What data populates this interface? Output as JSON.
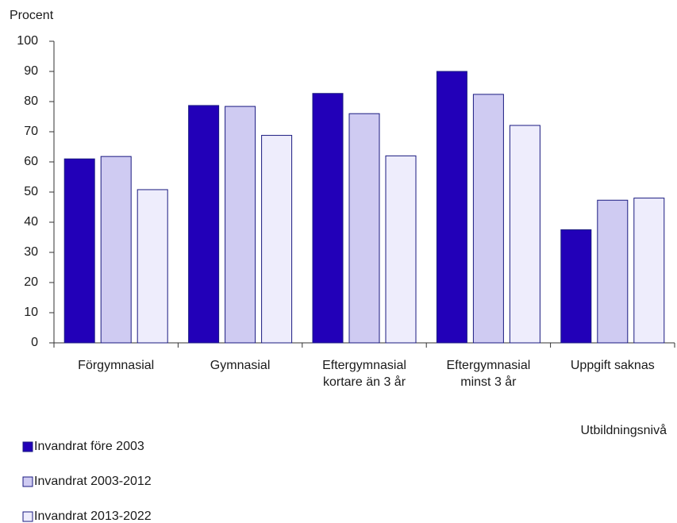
{
  "chart_data": {
    "type": "bar",
    "y_label": "Procent",
    "x_label": "Utbildningsnivå",
    "categories": [
      "Förgymnasial",
      "Gymnasial",
      "Eftergymnasial\nkortare än 3 år",
      "Eftergymnasial\nminst 3 år",
      "Uppgift saknas"
    ],
    "series": [
      {
        "name": "Invandrat före 2003",
        "color": "#2200b8",
        "values": [
          61,
          78.7,
          82.7,
          90,
          37.5
        ]
      },
      {
        "name": "Invandrat 2003-2012",
        "color": "#cfcbf2",
        "values": [
          61.8,
          78.4,
          76,
          82.4,
          47.3
        ]
      },
      {
        "name": "Invandrat 2013-2022",
        "color": "#eeedfc",
        "values": [
          50.8,
          68.8,
          62,
          72.1,
          48
        ]
      }
    ],
    "ylim": [
      0,
      100
    ],
    "yticks": [
      0,
      10,
      20,
      30,
      40,
      50,
      60,
      70,
      80,
      90,
      100
    ],
    "grid": false,
    "legend": "bottom-left"
  }
}
